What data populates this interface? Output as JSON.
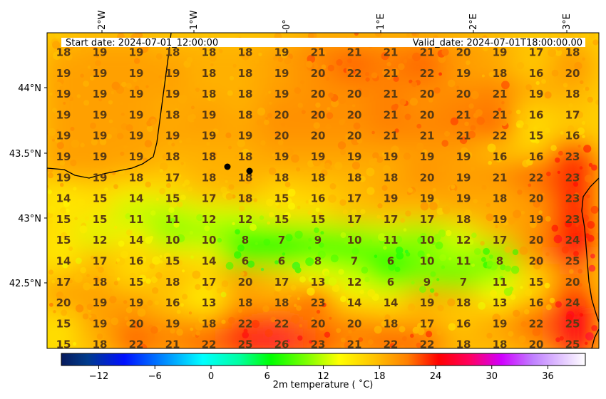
{
  "header": {
    "start": "Start date: 2024-07-01_12:00:00",
    "valid": "Valid_date: 2024-07-01T18:00:00.00"
  },
  "lon_labels": [
    "2°W",
    "1°W",
    "0°",
    "1°E",
    "2°E",
    "3°E"
  ],
  "lat_labels": [
    "44°N",
    "43.5°N",
    "43°N",
    "42.5°N"
  ],
  "colorbar": {
    "label": "2m temperature ($^\\circ$C)",
    "label_display": "2m temperature ( ˚C)",
    "ticks": [
      "−12",
      "−6",
      "0",
      "6",
      "12",
      "18",
      "24",
      "30",
      "36"
    ],
    "min": -16,
    "max": 40
  },
  "grid_values": [
    [
      18,
      19,
      19,
      18,
      18,
      18,
      19,
      21,
      21,
      21,
      21,
      20,
      19,
      17,
      18
    ],
    [
      19,
      19,
      19,
      19,
      18,
      18,
      19,
      20,
      22,
      21,
      22,
      19,
      18,
      16,
      20
    ],
    [
      19,
      19,
      19,
      19,
      18,
      18,
      19,
      20,
      20,
      21,
      20,
      20,
      21,
      19,
      18
    ],
    [
      19,
      19,
      19,
      18,
      19,
      18,
      20,
      20,
      20,
      21,
      20,
      21,
      21,
      16,
      17
    ],
    [
      19,
      19,
      19,
      19,
      19,
      19,
      20,
      20,
      20,
      21,
      21,
      21,
      22,
      15,
      16
    ],
    [
      19,
      19,
      19,
      18,
      18,
      18,
      19,
      19,
      19,
      19,
      19,
      19,
      16,
      16,
      23
    ],
    [
      19,
      19,
      18,
      17,
      18,
      18,
      18,
      18,
      18,
      18,
      20,
      19,
      21,
      22,
      23
    ],
    [
      14,
      15,
      14,
      15,
      17,
      18,
      15,
      16,
      17,
      19,
      19,
      19,
      18,
      20,
      23
    ],
    [
      15,
      15,
      11,
      11,
      12,
      12,
      15,
      15,
      17,
      17,
      17,
      18,
      19,
      19,
      23
    ],
    [
      15,
      12,
      14,
      10,
      10,
      8,
      7,
      9,
      10,
      11,
      10,
      12,
      17,
      20,
      24
    ],
    [
      14,
      17,
      16,
      15,
      14,
      6,
      6,
      8,
      7,
      6,
      10,
      11,
      8,
      20,
      25
    ],
    [
      17,
      18,
      15,
      18,
      17,
      20,
      17,
      13,
      12,
      6,
      9,
      7,
      11,
      15,
      20
    ],
    [
      20,
      19,
      19,
      16,
      13,
      18,
      18,
      23,
      14,
      14,
      19,
      18,
      13,
      16,
      24
    ],
    [
      15,
      19,
      20,
      19,
      18,
      22,
      22,
      20,
      20,
      18,
      17,
      16,
      19,
      22,
      25
    ],
    [
      15,
      18,
      22,
      21,
      22,
      25,
      26,
      23,
      21,
      22,
      22,
      18,
      18,
      20,
      25
    ]
  ]
}
